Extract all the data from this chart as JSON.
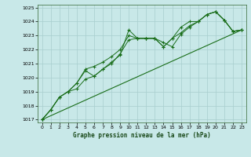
{
  "title": "Graphe pression niveau de la mer (hPa)",
  "bg_color": "#c8e8e8",
  "grid_color": "#a8cece",
  "line_color": "#1a6e1a",
  "x_values": [
    0,
    1,
    2,
    3,
    4,
    5,
    6,
    7,
    8,
    9,
    10,
    11,
    12,
    13,
    14,
    15,
    16,
    17,
    18,
    19,
    20,
    21,
    22,
    23
  ],
  "series1": [
    1017.0,
    1017.7,
    1018.6,
    1019.0,
    1019.2,
    1019.9,
    1020.1,
    1020.6,
    1021.1,
    1021.6,
    1023.4,
    1022.8,
    1022.8,
    1022.8,
    1022.5,
    1022.2,
    1023.1,
    1023.6,
    1024.0,
    1024.5,
    1024.7,
    1024.1,
    1023.3,
    1023.4
  ],
  "series2": [
    1017.0,
    1017.7,
    1018.6,
    1019.0,
    1019.6,
    1020.6,
    1020.8,
    1021.1,
    1021.5,
    1022.0,
    1023.0,
    1022.8,
    1022.8,
    1022.8,
    1022.2,
    1022.8,
    1023.6,
    1024.0,
    1024.0,
    1024.5,
    1024.7,
    1024.1,
    1023.3,
    1023.4
  ],
  "series3": [
    1017.0,
    1017.7,
    1018.6,
    1019.0,
    1019.6,
    1020.5,
    1020.1,
    1020.6,
    1021.0,
    1021.7,
    1022.7,
    1022.8,
    1022.8,
    1022.8,
    1022.2,
    1022.8,
    1023.2,
    1023.7,
    1024.0,
    1024.5,
    1024.7,
    1024.1,
    1023.3,
    1023.4
  ],
  "ylim_min": 1016.8,
  "ylim_max": 1025.2,
  "yticks": [
    1017,
    1018,
    1019,
    1020,
    1021,
    1022,
    1023,
    1024,
    1025
  ],
  "xticks": [
    0,
    1,
    2,
    3,
    4,
    5,
    6,
    7,
    8,
    9,
    10,
    11,
    12,
    13,
    14,
    15,
    16,
    17,
    18,
    19,
    20,
    21,
    22,
    23
  ]
}
